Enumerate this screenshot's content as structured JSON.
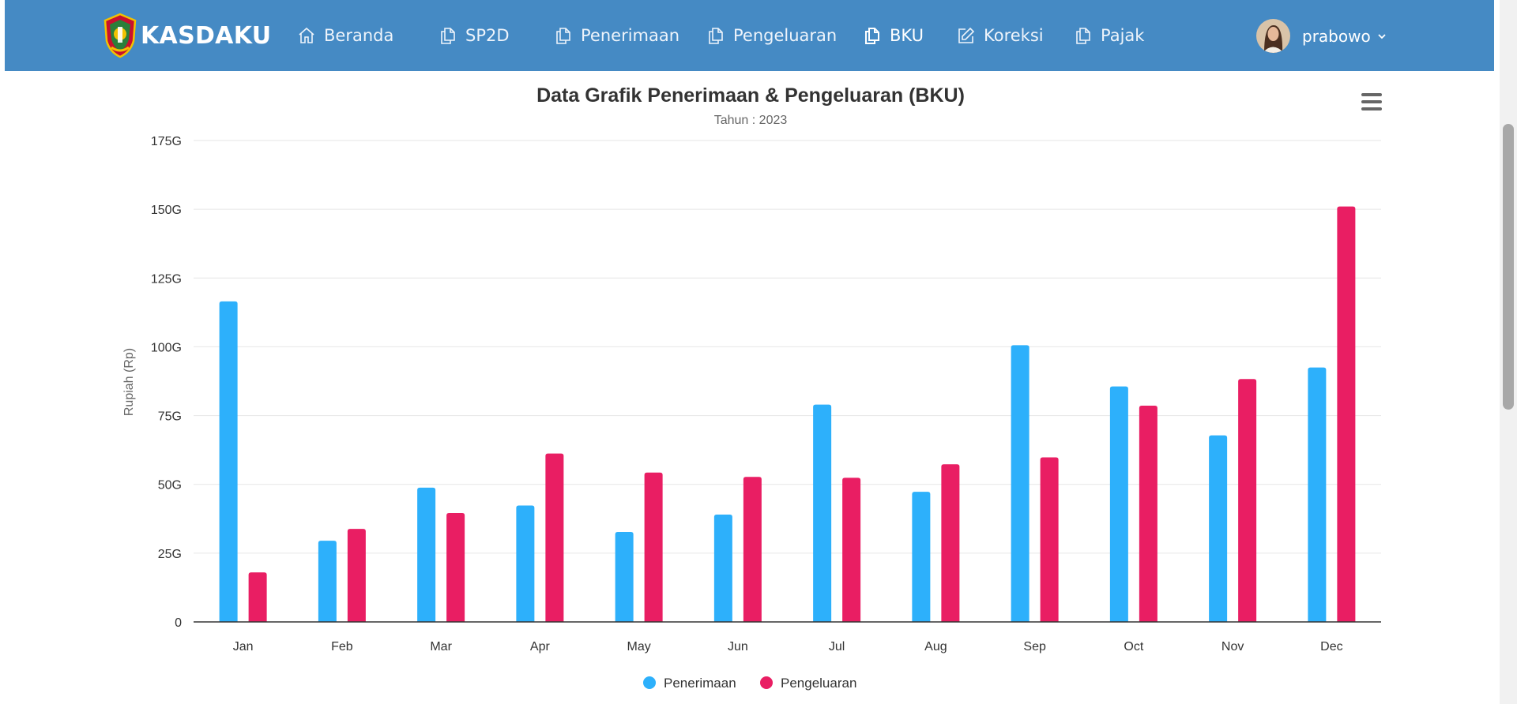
{
  "brand": {
    "name": "KASDAKU"
  },
  "nav": {
    "items": [
      {
        "label": "Beranda",
        "icon": "home-icon"
      },
      {
        "label": "SP2D",
        "icon": "copy-icon"
      },
      {
        "label": "Penerimaan",
        "icon": "copy-icon"
      },
      {
        "label": "Pengeluaran",
        "icon": "copy-icon"
      },
      {
        "label": "BKU",
        "icon": "copy-icon",
        "active": true
      },
      {
        "label": "Koreksi",
        "icon": "edit-icon"
      },
      {
        "label": "Pajak",
        "icon": "copy-icon"
      }
    ]
  },
  "user": {
    "name": "prabowo"
  },
  "colors": {
    "navbar": "#458ac4",
    "penerimaan": "#2db0fb",
    "pengeluaran": "#e91e63"
  },
  "chart_data": {
    "type": "bar",
    "title": "Data Grafik Penerimaan & Pengeluaran (BKU)",
    "subtitle": "Tahun : 2023",
    "xlabel": "",
    "ylabel": "Rupiah (Rp)",
    "ylim": [
      0,
      175
    ],
    "unit_suffix": "G",
    "yticks": [
      0,
      25,
      50,
      75,
      100,
      125,
      150,
      175
    ],
    "ytick_labels": [
      "0",
      "25G",
      "50G",
      "75G",
      "100G",
      "125G",
      "150G",
      "175G"
    ],
    "categories": [
      "Jan",
      "Feb",
      "Mar",
      "Apr",
      "May",
      "Jun",
      "Jul",
      "Aug",
      "Sep",
      "Oct",
      "Nov",
      "Dec"
    ],
    "series": [
      {
        "name": "Penerimaan",
        "color": "#2db0fb",
        "values": [
          116.5,
          29.5,
          48.8,
          42.3,
          32.7,
          39.0,
          79.0,
          47.3,
          100.6,
          85.6,
          67.8,
          92.5
        ]
      },
      {
        "name": "Pengeluaran",
        "color": "#e91e63",
        "values": [
          18.0,
          33.8,
          39.6,
          61.2,
          54.3,
          52.7,
          52.4,
          57.3,
          59.8,
          78.6,
          88.3,
          151.0
        ]
      }
    ],
    "legend_position": "bottom-center",
    "grid": true
  }
}
